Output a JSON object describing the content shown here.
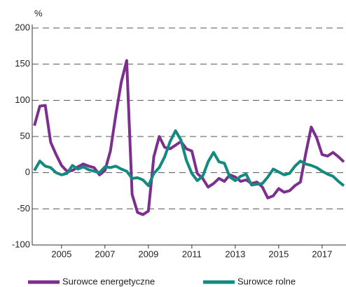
{
  "chart_data": {
    "type": "line",
    "y_label": "%",
    "x": [
      2003.75,
      2004,
      2004.25,
      2004.5,
      2004.75,
      2005,
      2005.25,
      2005.5,
      2005.75,
      2006,
      2006.25,
      2006.5,
      2006.75,
      2007,
      2007.25,
      2007.5,
      2007.75,
      2008,
      2008.25,
      2008.5,
      2008.75,
      2009,
      2009.25,
      2009.5,
      2009.75,
      2010,
      2010.25,
      2010.5,
      2010.75,
      2011,
      2011.25,
      2011.5,
      2011.75,
      2012,
      2012.25,
      2012.5,
      2012.75,
      2013,
      2013.25,
      2013.5,
      2013.75,
      2014,
      2014.25,
      2014.5,
      2014.75,
      2015,
      2015.25,
      2015.5,
      2015.75,
      2016,
      2016.25,
      2016.5,
      2016.75,
      2017,
      2017.25,
      2017.5,
      2017.75,
      2018
    ],
    "series": [
      {
        "name": "Surowce energetyczne",
        "color": "#7d2f8f",
        "values": [
          65,
          92,
          93,
          42,
          25,
          10,
          2,
          3,
          8,
          12,
          9,
          7,
          -3,
          3,
          30,
          80,
          125,
          155,
          -30,
          -55,
          -58,
          -53,
          22,
          50,
          35,
          33,
          38,
          43,
          33,
          30,
          -1,
          -8,
          -20,
          -15,
          -8,
          -12,
          -3,
          -6,
          -12,
          -10,
          -15,
          -13,
          -20,
          -35,
          -32,
          -22,
          -27,
          -25,
          -18,
          -13,
          27,
          63,
          48,
          25,
          23,
          28,
          22,
          15
        ]
      },
      {
        "name": "Surowce rolne",
        "color": "#138a7f",
        "values": [
          3,
          16,
          9,
          7,
          0,
          -3,
          -1,
          10,
          5,
          8,
          4,
          2,
          0,
          8,
          7,
          9,
          5,
          2,
          -8,
          -7,
          -10,
          -18,
          -1,
          7,
          22,
          43,
          58,
          45,
          17,
          -1,
          -11,
          -5,
          15,
          28,
          15,
          13,
          -6,
          -11,
          -5,
          -2,
          -17,
          -16,
          -15,
          -6,
          5,
          1,
          -3,
          -1,
          9,
          16,
          12,
          10,
          7,
          2,
          -2,
          -5,
          -12,
          -18
        ]
      }
    ],
    "xlim": [
      2003.65,
      2018.1
    ],
    "xticks": [
      2005,
      2007,
      2009,
      2011,
      2013,
      2015,
      2017
    ],
    "ylim": [
      -100,
      200
    ],
    "yticks": [
      -100,
      -50,
      0,
      50,
      100,
      150,
      200
    ],
    "grid": true,
    "legend": "bottom"
  }
}
